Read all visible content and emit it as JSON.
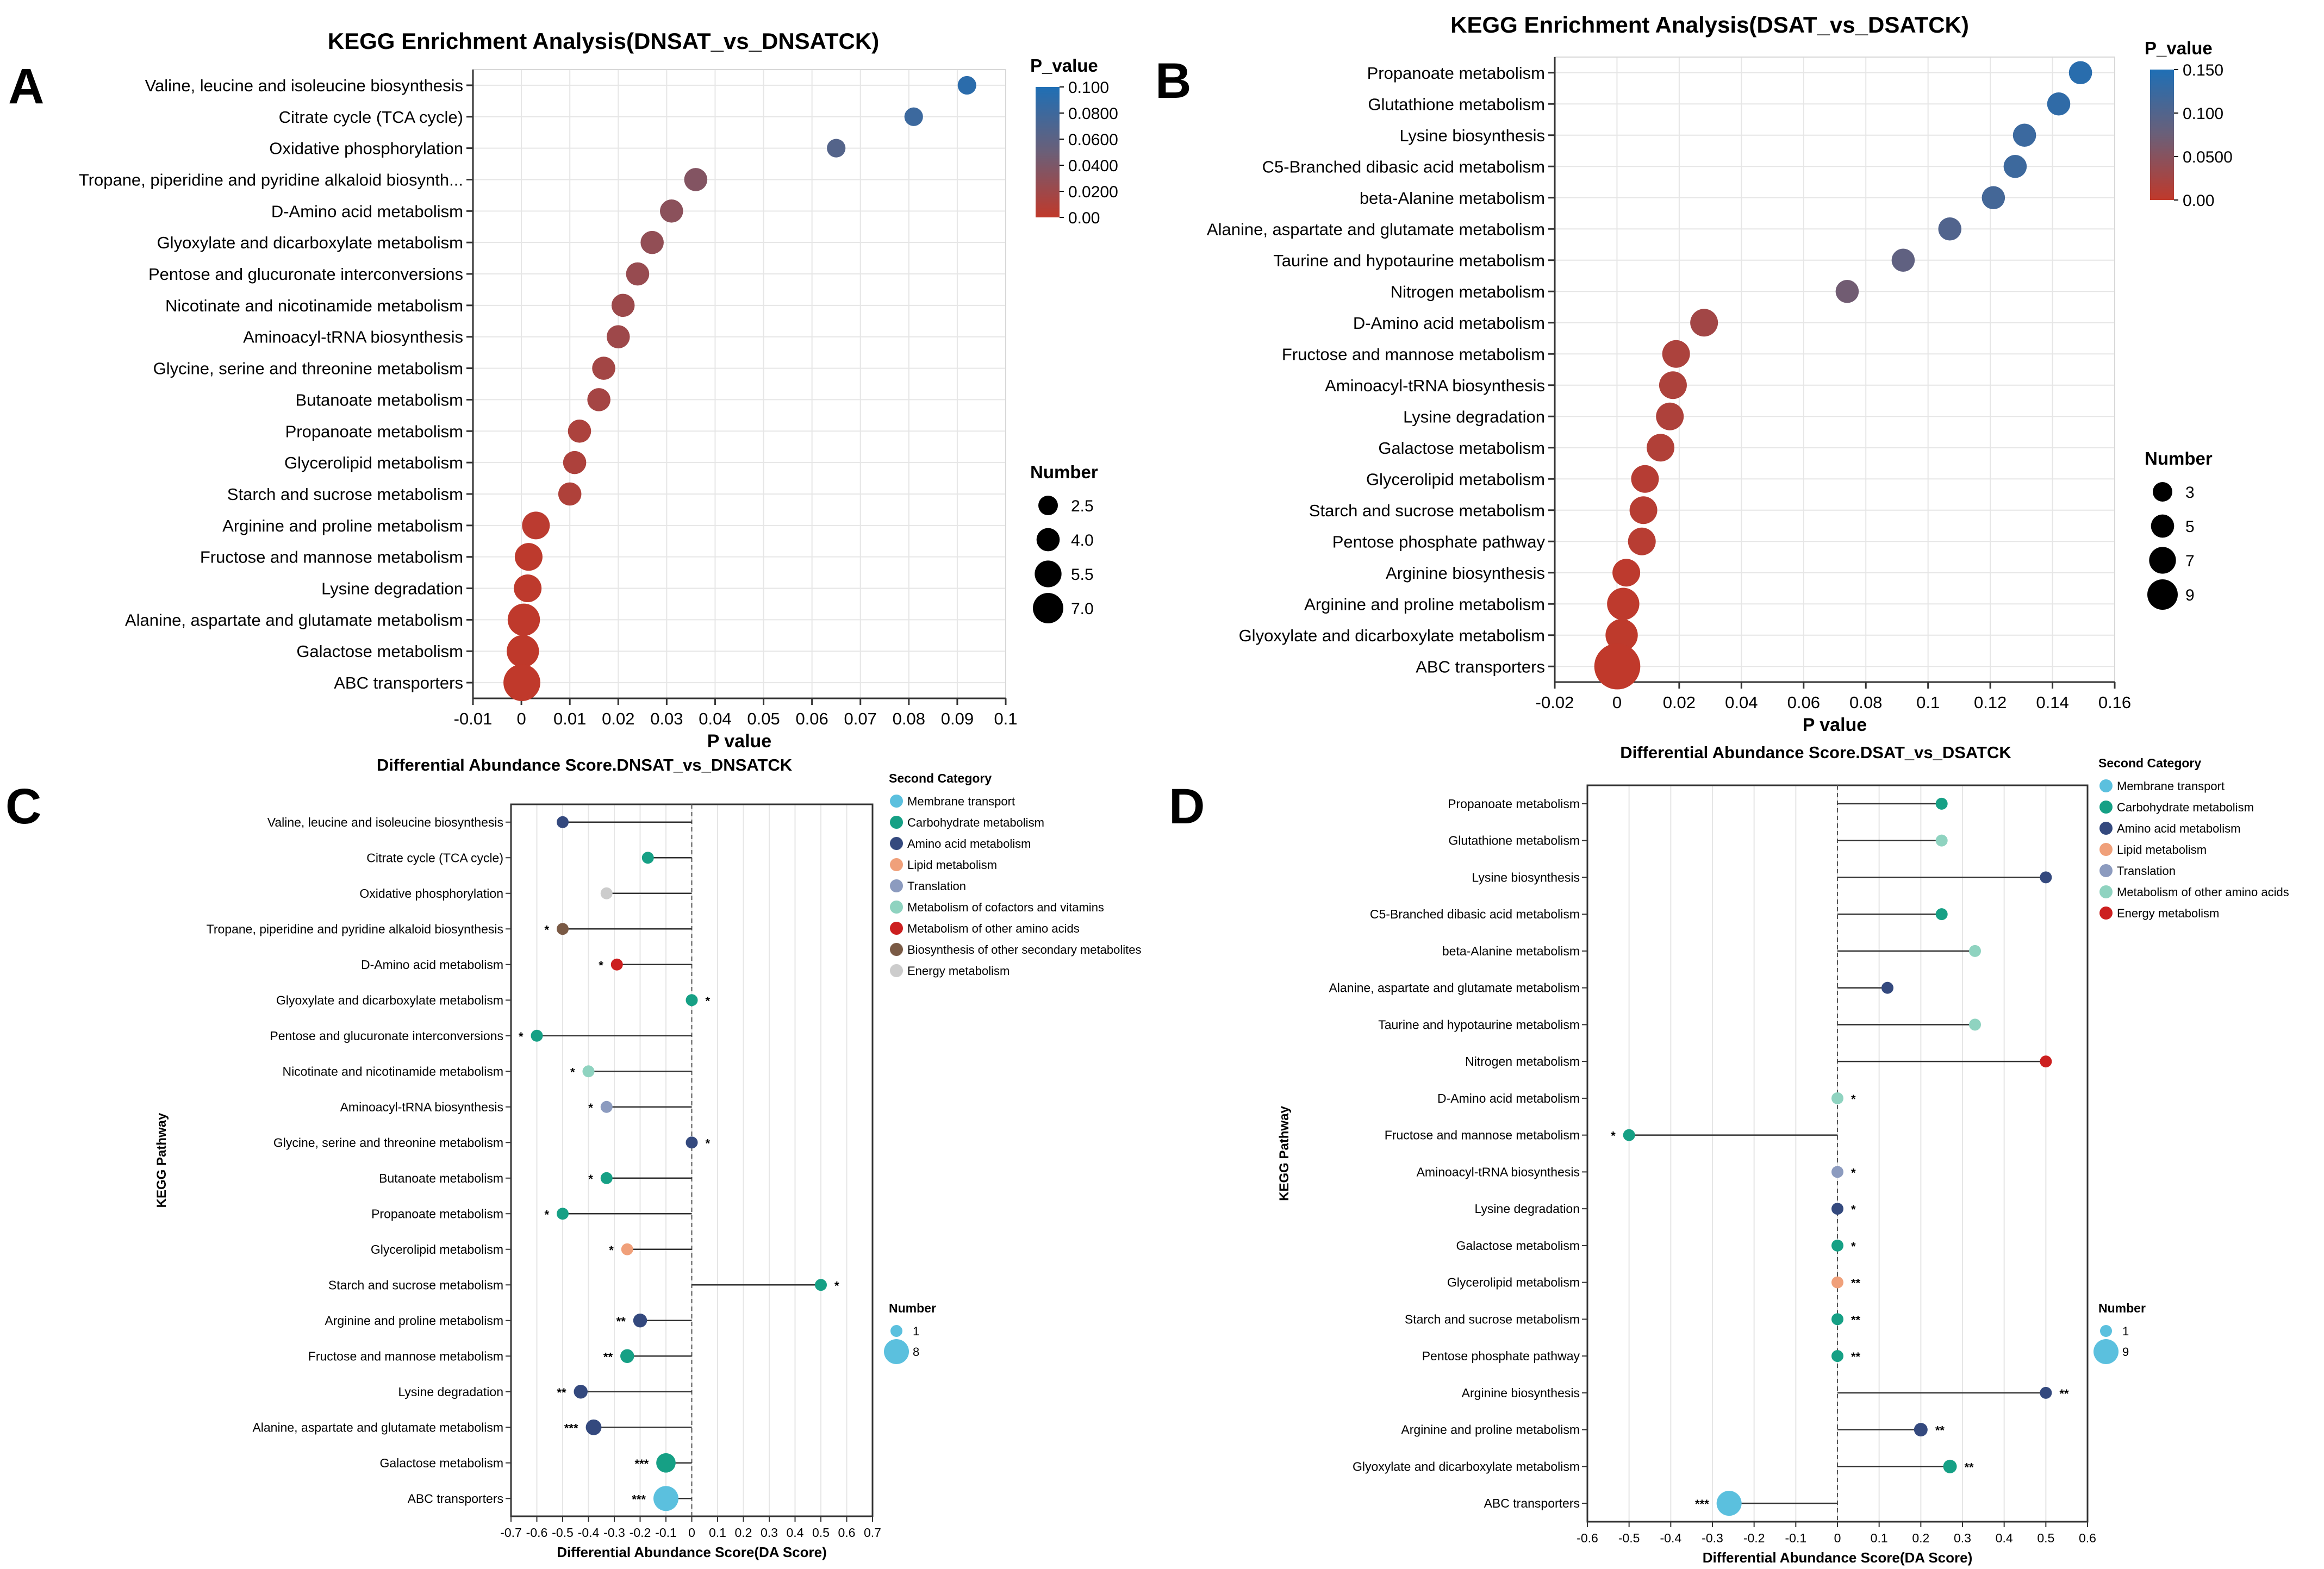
{
  "colors": {
    "scale_low": "#c0392b",
    "scale_mid": "#6b5f78",
    "scale_high": "#1f6fb5",
    "grid": "#e6e6e6",
    "axis": "#333333",
    "sig_star": "#e53935"
  },
  "chart_data": [
    {
      "panel": "A",
      "type": "scatter",
      "title": "KEGG Enrichment Analysis(DNSAT_vs_DNSATCK)",
      "xlabel": "P value",
      "xlim": [
        -0.01,
        0.1
      ],
      "xticks": [
        "-0.01",
        "0",
        "0.01",
        "0.02",
        "0.03",
        "0.04",
        "0.05",
        "0.06",
        "0.07",
        "0.08",
        "0.09",
        "0.1"
      ],
      "xtick_values": [
        -0.01,
        0,
        0.01,
        0.02,
        0.03,
        0.04,
        0.05,
        0.06,
        0.07,
        0.08,
        0.09,
        0.1
      ],
      "color_scale": {
        "title": "P_value",
        "min": 0,
        "max": 0.1,
        "labels": [
          "0.100",
          "0.0800",
          "0.0600",
          "0.0400",
          "0.0200",
          "0.00"
        ]
      },
      "size_legend": {
        "title": "Number",
        "labels": [
          "2.5",
          "4.0",
          "5.5",
          "7.0"
        ],
        "values": [
          2.5,
          4.0,
          5.5,
          7.0
        ]
      },
      "categories": [
        "Valine, leucine and isoleucine biosynthesis",
        "Citrate cycle (TCA cycle)",
        "Oxidative phosphorylation",
        "Tropane, piperidine and pyridine alkaloid biosynth...",
        "D-Amino acid metabolism",
        "Glyoxylate and dicarboxylate metabolism",
        "Pentose and glucuronate interconversions",
        "Nicotinate and nicotinamide metabolism",
        "Aminoacyl-tRNA biosynthesis",
        "Glycine, serine and threonine metabolism",
        "Butanoate metabolism",
        "Propanoate metabolism",
        "Glycerolipid metabolism",
        "Starch and sucrose metabolism",
        "Arginine and proline metabolism",
        "Fructose and mannose metabolism",
        "Lysine degradation",
        "Alanine, aspartate and glutamate metabolism",
        "Galactose metabolism",
        "ABC transporters"
      ],
      "x": [
        0.092,
        0.081,
        0.065,
        0.036,
        0.031,
        0.027,
        0.024,
        0.021,
        0.02,
        0.017,
        0.016,
        0.012,
        0.011,
        0.01,
        0.003,
        0.0015,
        0.0013,
        0.0005,
        0.0003,
        0.0001
      ],
      "size": [
        3,
        3,
        3,
        4,
        4,
        4,
        4,
        4,
        4,
        4,
        4,
        4,
        4,
        4,
        5,
        5,
        5,
        6,
        6,
        7
      ]
    },
    {
      "panel": "B",
      "type": "scatter",
      "title": "KEGG Enrichment Analysis(DSAT_vs_DSATCK)",
      "xlabel": "P value",
      "xlim": [
        -0.02,
        0.16
      ],
      "xticks": [
        "-0.02",
        "0",
        "0.02",
        "0.04",
        "0.06",
        "0.08",
        "0.1",
        "0.12",
        "0.14",
        "0.16"
      ],
      "xtick_values": [
        -0.02,
        0,
        0.02,
        0.04,
        0.06,
        0.08,
        0.1,
        0.12,
        0.14,
        0.16
      ],
      "color_scale": {
        "title": "P_value",
        "min": 0,
        "max": 0.16,
        "labels": [
          "0.150",
          "0.100",
          "0.0500",
          "0.00"
        ]
      },
      "size_legend": {
        "title": "Number",
        "labels": [
          "3",
          "5",
          "7",
          "9"
        ],
        "values": [
          3,
          5,
          7,
          9
        ]
      },
      "categories": [
        "Propanoate metabolism",
        "Glutathione metabolism",
        "Lysine biosynthesis",
        "C5-Branched dibasic acid metabolism",
        "beta-Alanine metabolism",
        "Alanine, aspartate and glutamate metabolism",
        "Taurine and hypotaurine metabolism",
        "Nitrogen metabolism",
        "D-Amino acid metabolism",
        "Fructose and mannose metabolism",
        "Aminoacyl-tRNA biosynthesis",
        "Lysine degradation",
        "Galactose metabolism",
        "Glycerolipid metabolism",
        "Starch and sucrose metabolism",
        "Pentose phosphate pathway",
        "Arginine biosynthesis",
        "Arginine and proline metabolism",
        "Glyoxylate and dicarboxylate metabolism",
        "ABC transporters"
      ],
      "x": [
        0.149,
        0.142,
        0.131,
        0.128,
        0.121,
        0.107,
        0.092,
        0.074,
        0.028,
        0.019,
        0.018,
        0.017,
        0.014,
        0.009,
        0.0085,
        0.008,
        0.003,
        0.002,
        0.0015,
        0.0001
      ],
      "size": [
        4,
        4,
        4,
        4,
        4,
        4,
        4,
        4,
        5,
        5,
        5,
        5,
        5,
        5,
        5,
        5,
        5,
        6,
        6,
        9
      ]
    },
    {
      "panel": "C",
      "type": "lollipop",
      "title": "Differential Abundance Score.DNSAT_vs_DNSATCK",
      "xlabel": "Differential Abundance Score(DA Score)",
      "ylabel": "KEGG Pathway",
      "xlim": [
        -0.7,
        0.7
      ],
      "xticks": [
        "-0.7",
        "-0.6",
        "-0.5",
        "-0.4",
        "-0.3",
        "-0.2",
        "-0.1",
        "0",
        "0.1",
        "0.2",
        "0.3",
        "0.4",
        "0.5",
        "0.6",
        "0.7"
      ],
      "xtick_values": [
        -0.7,
        -0.6,
        -0.5,
        -0.4,
        -0.3,
        -0.2,
        -0.1,
        0,
        0.1,
        0.2,
        0.3,
        0.4,
        0.5,
        0.6,
        0.7
      ],
      "legend_title": "Second Category",
      "legend": [
        {
          "name": "Membrane transport",
          "color": "#5bc0de"
        },
        {
          "name": "Carbohydrate metabolism",
          "color": "#16a085"
        },
        {
          "name": "Amino acid metabolism",
          "color": "#34497e"
        },
        {
          "name": "Lipid metabolism",
          "color": "#f0a07a"
        },
        {
          "name": "Translation",
          "color": "#8c9bbf"
        },
        {
          "name": "Metabolism of cofactors and vitamins",
          "color": "#8fd3c0"
        },
        {
          "name": "Metabolism of other amino acids",
          "color": "#cc1f1f"
        },
        {
          "name": "Biosynthesis of other secondary metabolites",
          "color": "#7a5a45"
        },
        {
          "name": "Energy metabolism",
          "color": "#cccccc"
        }
      ],
      "size_legend": {
        "title": "Number",
        "labels": [
          "1",
          "8"
        ],
        "values": [
          1,
          8
        ]
      },
      "categories": [
        "Valine, leucine and isoleucine biosynthesis",
        "Citrate cycle (TCA cycle)",
        "Oxidative phosphorylation",
        "Tropane, piperidine and pyridine alkaloid biosynthesis",
        "D-Amino acid metabolism",
        "Glyoxylate and dicarboxylate metabolism",
        "Pentose and glucuronate interconversions",
        "Nicotinate and nicotinamide metabolism",
        "Aminoacyl-tRNA biosynthesis",
        "Glycine, serine and threonine metabolism",
        "Butanoate metabolism",
        "Propanoate metabolism",
        "Glycerolipid metabolism",
        "Starch and sucrose metabolism",
        "Arginine and proline metabolism",
        "Fructose and mannose metabolism",
        "Lysine degradation",
        "Alanine, aspartate and glutamate metabolism",
        "Galactose metabolism",
        "ABC transporters"
      ],
      "values": [
        -0.5,
        -0.17,
        -0.33,
        -0.5,
        -0.29,
        0,
        -0.6,
        -0.4,
        -0.33,
        0,
        -0.33,
        -0.5,
        -0.25,
        0.5,
        -0.2,
        -0.25,
        -0.43,
        -0.38,
        -0.1,
        -0.1
      ],
      "category_index": [
        2,
        1,
        8,
        7,
        6,
        1,
        1,
        5,
        4,
        2,
        1,
        1,
        3,
        1,
        2,
        1,
        2,
        2,
        1,
        0
      ],
      "size": [
        1,
        1,
        1,
        1,
        1,
        1,
        1,
        1,
        1,
        1,
        1,
        1,
        1,
        1,
        2,
        2,
        2,
        3,
        5,
        8
      ],
      "stars": [
        "",
        "",
        "",
        "*",
        "*",
        "*",
        "*",
        "*",
        "*",
        "*",
        "*",
        "*",
        "*",
        "*",
        "**",
        "**",
        "**",
        "***",
        "***",
        "***"
      ]
    },
    {
      "panel": "D",
      "type": "lollipop",
      "title": "Differential Abundance Score.DSAT_vs_DSATCK",
      "xlabel": "Differential Abundance Score(DA Score)",
      "ylabel": "KEGG Pathway",
      "xlim": [
        -0.6,
        0.6
      ],
      "xticks": [
        "-0.6",
        "-0.5",
        "-0.4",
        "-0.3",
        "-0.2",
        "-0.1",
        "0",
        "0.1",
        "0.2",
        "0.3",
        "0.4",
        "0.5",
        "0.6"
      ],
      "xtick_values": [
        -0.6,
        -0.5,
        -0.4,
        -0.3,
        -0.2,
        -0.1,
        0,
        0.1,
        0.2,
        0.3,
        0.4,
        0.5,
        0.6
      ],
      "legend_title": "Second Category",
      "legend": [
        {
          "name": "Membrane transport",
          "color": "#5bc0de"
        },
        {
          "name": "Carbohydrate metabolism",
          "color": "#16a085"
        },
        {
          "name": "Amino acid metabolism",
          "color": "#34497e"
        },
        {
          "name": "Lipid metabolism",
          "color": "#f0a07a"
        },
        {
          "name": "Translation",
          "color": "#8c9bbf"
        },
        {
          "name": "Metabolism of other amino acids",
          "color": "#8fd3c0"
        },
        {
          "name": "Energy metabolism",
          "color": "#cc1f1f"
        }
      ],
      "size_legend": {
        "title": "Number",
        "labels": [
          "1",
          "9"
        ],
        "values": [
          1,
          9
        ]
      },
      "categories": [
        "Propanoate metabolism",
        "Glutathione metabolism",
        "Lysine biosynthesis",
        "C5-Branched dibasic acid metabolism",
        "beta-Alanine metabolism",
        "Alanine, aspartate and glutamate metabolism",
        "Taurine and hypotaurine metabolism",
        "Nitrogen metabolism",
        "D-Amino acid metabolism",
        "Fructose and mannose metabolism",
        "Aminoacyl-tRNA biosynthesis",
        "Lysine degradation",
        "Galactose metabolism",
        "Glycerolipid metabolism",
        "Starch and sucrose metabolism",
        "Pentose phosphate pathway",
        "Arginine biosynthesis",
        "Arginine and proline metabolism",
        "Glyoxylate and dicarboxylate metabolism",
        "ABC transporters"
      ],
      "values": [
        0.25,
        0.25,
        0.5,
        0.25,
        0.33,
        0.12,
        0.33,
        0.5,
        0,
        -0.5,
        0,
        0,
        0,
        0,
        0,
        0,
        0.5,
        0.2,
        0.27,
        -0.26
      ],
      "category_index": [
        1,
        5,
        2,
        1,
        5,
        2,
        5,
        6,
        5,
        1,
        4,
        2,
        1,
        3,
        1,
        1,
        2,
        2,
        1,
        0
      ],
      "size": [
        1,
        1,
        1,
        1,
        1,
        1,
        1,
        1,
        1,
        1,
        1,
        1,
        1,
        1,
        1,
        1,
        1,
        2,
        2,
        9
      ],
      "stars": [
        "",
        "",
        "",
        "",
        "",
        "",
        "",
        "",
        "*",
        "*",
        "*",
        "*",
        "*",
        "**",
        "**",
        "**",
        "**",
        "**",
        "**",
        "***"
      ]
    }
  ]
}
